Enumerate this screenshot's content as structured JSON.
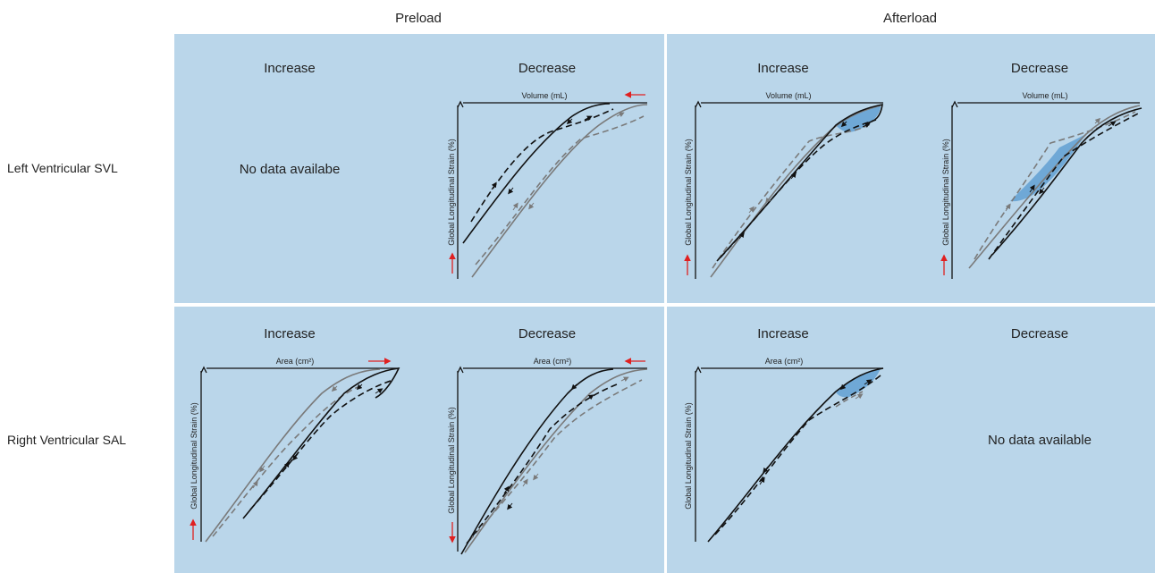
{
  "columns": {
    "preload": "Preload",
    "afterload": "Afterload"
  },
  "rows": {
    "lv": "Left Ventricular SVL",
    "rv": "Right Ventricular SAL"
  },
  "panels": {
    "lv_preload": {
      "increase": "Increase",
      "decrease": "Decrease",
      "note": "No data availabe"
    },
    "lv_afterload": {
      "increase": "Increase",
      "decrease": "Decrease"
    },
    "rv_preload": {
      "increase": "Increase",
      "decrease": "Decrease"
    },
    "rv_afterload": {
      "increase": "Increase",
      "decrease": "Decrease",
      "note": "No data available"
    }
  },
  "axes": {
    "volume": "Volume (mL)",
    "area": "Area (cm²)",
    "strain": "Global Longitudinal Strain (%)"
  },
  "colors": {
    "panel": "#bad6ea",
    "baseline_loop": "#7a7a7a",
    "altered_loop": "#111111",
    "loop_fill": "#6fa8d6",
    "direction_arrow": "#e02020"
  }
}
